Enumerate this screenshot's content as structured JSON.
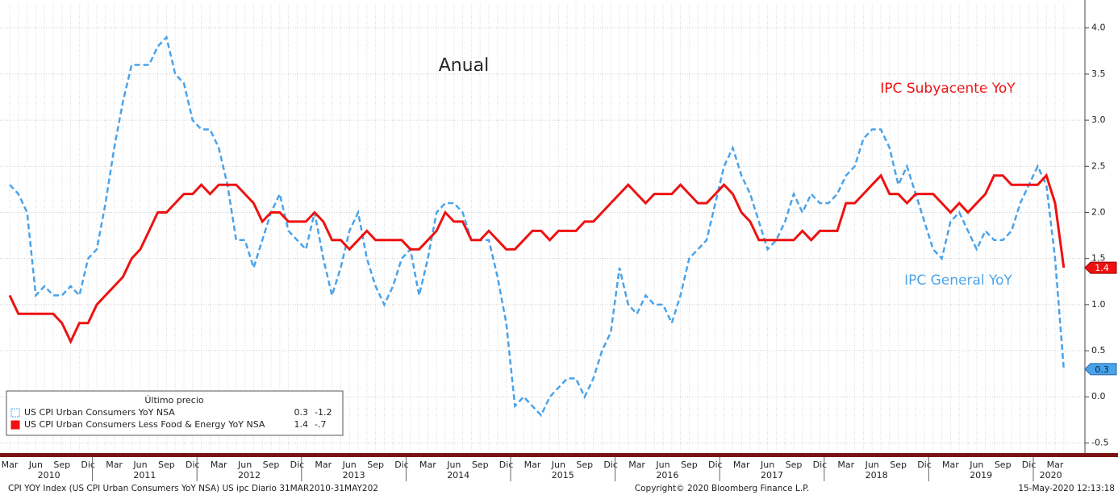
{
  "chart_data": {
    "type": "line",
    "title": "Anual",
    "annotations": [
      "IPC Subyacente YoY",
      "IPC General YoY"
    ],
    "legend_title": "Último precio",
    "categories": [
      "Mar",
      null,
      null,
      "Jun",
      null,
      null,
      "Sep",
      null,
      null,
      "Dic",
      null,
      null,
      "Mar",
      null,
      null,
      "Jun",
      null,
      null,
      "Sep",
      null,
      null,
      "Dic",
      null,
      null,
      "Mar",
      null,
      null,
      "Jun",
      null,
      null,
      "Sep",
      null,
      null,
      "Dic",
      null,
      null,
      "Mar",
      null,
      null,
      "Jun",
      null,
      null,
      "Sep",
      null,
      null,
      "Dic",
      null,
      null,
      "Mar",
      null,
      null,
      "Jun",
      null,
      null,
      "Sep",
      null,
      null,
      "Dic",
      null,
      null,
      "Mar",
      null,
      null,
      "Jun",
      null,
      null,
      "Sep",
      null,
      null,
      "Dic",
      null,
      null,
      "Mar",
      null,
      null,
      "Jun",
      null,
      null,
      "Sep",
      null,
      null,
      "Dic",
      null,
      null,
      "Mar",
      null,
      null,
      "Jun",
      null,
      null,
      "Sep",
      null,
      null,
      "Dic",
      null,
      null,
      "Mar",
      null,
      null,
      "Jun",
      null,
      null,
      "Sep",
      null,
      null,
      "Dic",
      null,
      null,
      "Mar",
      null,
      null,
      "Jun",
      null,
      null,
      "Sep",
      null,
      null,
      "Dic",
      null,
      null,
      "Mar",
      null
    ],
    "years": [
      "2010",
      "2011",
      "2012",
      "2013",
      "2014",
      "2015",
      "2016",
      "2017",
      "2018",
      "2019",
      "2020"
    ],
    "series": [
      {
        "name": "US CPI Urban Consumers YoY NSA",
        "color": "#4aa3ea",
        "dashed": true,
        "change": -1.2,
        "values": [
          2.3,
          2.2,
          2.0,
          1.1,
          1.2,
          1.1,
          1.1,
          1.2,
          1.1,
          1.5,
          1.6,
          2.1,
          2.7,
          3.2,
          3.6,
          3.6,
          3.6,
          3.8,
          3.9,
          3.5,
          3.4,
          3.0,
          2.9,
          2.9,
          2.7,
          2.3,
          1.7,
          1.7,
          1.4,
          1.7,
          2.0,
          2.2,
          1.8,
          1.7,
          1.6,
          2.0,
          1.5,
          1.1,
          1.4,
          1.8,
          2.0,
          1.5,
          1.2,
          1.0,
          1.2,
          1.5,
          1.6,
          1.1,
          1.5,
          2.0,
          2.1,
          2.1,
          2.0,
          1.7,
          1.7,
          1.7,
          1.3,
          0.8,
          -0.1,
          0.0,
          -0.1,
          -0.2,
          0.0,
          0.1,
          0.2,
          0.2,
          0.0,
          0.2,
          0.5,
          0.7,
          1.4,
          1.0,
          0.9,
          1.1,
          1.0,
          1.0,
          0.8,
          1.1,
          1.5,
          1.6,
          1.7,
          2.1,
          2.5,
          2.7,
          2.4,
          2.2,
          1.9,
          1.6,
          1.7,
          1.9,
          2.2,
          2.0,
          2.2,
          2.1,
          2.1,
          2.2,
          2.4,
          2.5,
          2.8,
          2.9,
          2.9,
          2.7,
          2.3,
          2.5,
          2.2,
          1.9,
          1.6,
          1.5,
          1.9,
          2.0,
          1.8,
          1.6,
          1.8,
          1.7,
          1.7,
          1.8,
          2.1,
          2.3,
          2.5,
          2.3,
          1.5,
          0.3
        ]
      },
      {
        "name": "US CPI Urban Consumers Less Food & Energy YoY NSA",
        "color": "#ee1111",
        "dashed": false,
        "change": {
          "value": -0.7,
          "label": "-.7"
        },
        "values": [
          1.1,
          0.9,
          0.9,
          0.9,
          0.9,
          0.9,
          0.8,
          0.6,
          0.8,
          0.8,
          1.0,
          1.1,
          1.2,
          1.3,
          1.5,
          1.6,
          1.8,
          2.0,
          2.0,
          2.1,
          2.2,
          2.2,
          2.3,
          2.2,
          2.3,
          2.3,
          2.3,
          2.2,
          2.1,
          1.9,
          2.0,
          2.0,
          1.9,
          1.9,
          1.9,
          2.0,
          1.9,
          1.7,
          1.7,
          1.6,
          1.7,
          1.8,
          1.7,
          1.7,
          1.7,
          1.7,
          1.6,
          1.6,
          1.7,
          1.8,
          2.0,
          1.9,
          1.9,
          1.7,
          1.7,
          1.8,
          1.7,
          1.6,
          1.6,
          1.7,
          1.8,
          1.8,
          1.7,
          1.8,
          1.8,
          1.8,
          1.9,
          1.9,
          2.0,
          2.1,
          2.2,
          2.3,
          2.2,
          2.1,
          2.2,
          2.2,
          2.2,
          2.3,
          2.2,
          2.1,
          2.1,
          2.2,
          2.3,
          2.2,
          2.0,
          1.9,
          1.7,
          1.7,
          1.7,
          1.7,
          1.7,
          1.8,
          1.7,
          1.8,
          1.8,
          1.8,
          2.1,
          2.1,
          2.2,
          2.3,
          2.4,
          2.2,
          2.2,
          2.1,
          2.2,
          2.2,
          2.2,
          2.1,
          2.0,
          2.1,
          2.0,
          2.1,
          2.2,
          2.4,
          2.4,
          2.3,
          2.3,
          2.3,
          2.3,
          2.4,
          2.1,
          1.4
        ]
      }
    ],
    "ylim": [
      -0.61,
      4.26
    ],
    "yticks": [
      -0.5,
      {
        "value": 0,
        "label": "0.0"
      },
      0.5,
      {
        "value": 1,
        "label": "1.0"
      },
      1.5,
      {
        "value": 2,
        "label": "2.0"
      },
      2.5,
      {
        "value": 3,
        "label": "3.0"
      },
      3.5,
      {
        "value": 4,
        "label": "4.0"
      }
    ],
    "grid": true,
    "legend": "lower left",
    "footer": [
      "CPI YOY Index (US CPI Urban Consumers YoY NSA) US ipc  Diario 31MAR2010-31MAY202",
      "Copyright© 2020 Bloomberg Finance L.P.",
      "15-May-2020 12:13:18"
    ]
  }
}
